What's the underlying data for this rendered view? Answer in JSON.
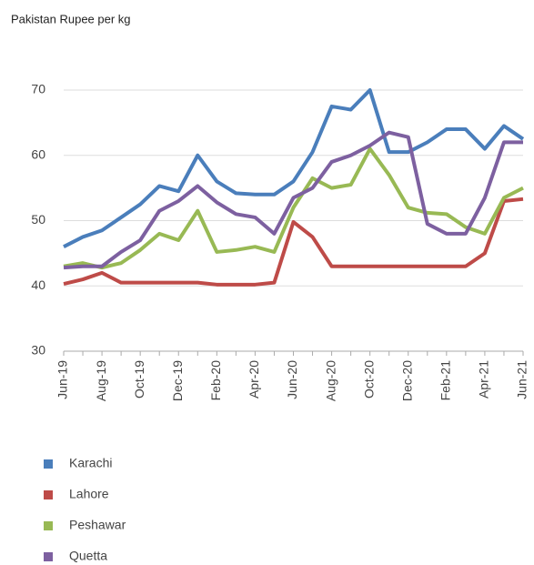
{
  "chart_data": {
    "type": "line",
    "title": "Pakistan Rupee per kg",
    "categories": [
      "Jun-19",
      null,
      "Aug-19",
      null,
      "Oct-19",
      null,
      "Dec-19",
      null,
      "Feb-20",
      null,
      "Apr-20",
      null,
      "Jun-20",
      null,
      "Aug-20",
      null,
      "Oct-20",
      null,
      "Dec-20",
      null,
      "Feb-21",
      null,
      "Apr-21",
      null,
      "Jun-21"
    ],
    "series": [
      {
        "name": "Karachi",
        "color": "#4a7ebb",
        "values": [
          46,
          47.5,
          48.5,
          50.5,
          52.5,
          55.3,
          54.5,
          60,
          56,
          54.2,
          54,
          54,
          56,
          60.5,
          67.5,
          67,
          70,
          60.5,
          60.5,
          62,
          64,
          64,
          61,
          64.5,
          62.5
        ]
      },
      {
        "name": "Lahore",
        "color": "#be4b48",
        "values": [
          40.3,
          41,
          42,
          40.5,
          40.5,
          40.5,
          40.5,
          40.5,
          40.2,
          40.2,
          40.2,
          40.5,
          49.8,
          47.5,
          43,
          43,
          43,
          43,
          43,
          43,
          43,
          43,
          45,
          53,
          53.3
        ]
      },
      {
        "name": "Peshawar",
        "color": "#98b954",
        "values": [
          43,
          43.5,
          42.8,
          43.5,
          45.5,
          48,
          47,
          51.5,
          45.2,
          45.5,
          46,
          45.2,
          52,
          56.5,
          55,
          55.5,
          61,
          57,
          52,
          51.2,
          51,
          49,
          48,
          53.5,
          55
        ]
      },
      {
        "name": "Quetta",
        "color": "#7d60a0",
        "values": [
          42.8,
          43,
          43,
          45.2,
          47,
          51.5,
          53,
          55.3,
          52.8,
          51,
          50.5,
          48,
          53.5,
          55,
          59,
          60,
          61.5,
          63.5,
          62.8,
          49.5,
          48,
          48,
          53.5,
          62,
          62
        ]
      }
    ],
    "ylim": [
      30,
      70
    ],
    "yticks": [
      30,
      40,
      50,
      60,
      70
    ],
    "grid": true
  }
}
